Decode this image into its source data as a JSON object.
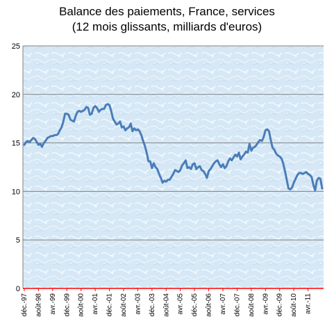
{
  "chart_data": {
    "type": "line",
    "title_lines": [
      "Balance des paiements, France, services",
      "(12 mois glissants, milliards d'euros)"
    ],
    "xlabel": "",
    "ylabel": "",
    "ylim": [
      0,
      25
    ],
    "yticks": [
      0,
      5,
      10,
      15,
      20,
      25
    ],
    "grid": true,
    "legend": "none",
    "colors": {
      "line": "#4a7db8",
      "grid": "#808080",
      "axis": "#ff0000",
      "plot_bg": "#dcebf7"
    },
    "x_tick_labels": [
      "déc.-97",
      "août-98",
      "avr.-99",
      "déc.-99",
      "août-00",
      "avr.-01",
      "déc.-01",
      "août-02",
      "avr.-03",
      "déc.-03",
      "août-04",
      "avr.-05",
      "déc.-05",
      "août-06",
      "avr.-07",
      "déc.-07",
      "août-08",
      "avr.-09",
      "déc.-09",
      "août-10",
      "avr.-11"
    ],
    "x_start": "déc.-97",
    "x_end": "avr.-11",
    "series": [
      {
        "frequency": "monthly",
        "values": [
          14.8,
          15.1,
          15.2,
          15.1,
          15.3,
          15.5,
          15.4,
          15.1,
          14.8,
          14.9,
          14.6,
          15.0,
          15.2,
          15.5,
          15.6,
          15.7,
          15.7,
          15.8,
          15.8,
          15.9,
          16.3,
          16.6,
          17.2,
          18.0,
          18.0,
          17.9,
          17.4,
          17.3,
          17.2,
          17.8,
          18.2,
          18.3,
          18.2,
          18.3,
          18.4,
          18.7,
          18.6,
          17.9,
          18.0,
          18.6,
          18.8,
          18.6,
          18.2,
          18.4,
          18.5,
          18.5,
          18.9,
          19.0,
          18.9,
          18.3,
          17.5,
          17.2,
          16.9,
          17.0,
          17.2,
          16.6,
          16.7,
          16.3,
          16.5,
          16.6,
          17.0,
          16.2,
          16.5,
          16.3,
          16.4,
          16.2,
          15.8,
          15.2,
          14.7,
          14.0,
          13.1,
          13.1,
          12.4,
          12.9,
          12.5,
          12.3,
          11.8,
          11.4,
          10.9,
          11.1,
          11.0,
          11.2,
          11.2,
          11.5,
          11.8,
          12.2,
          12.1,
          12.0,
          12.2,
          12.7,
          12.9,
          13.2,
          12.4,
          12.5,
          12.3,
          12.8,
          12.9,
          12.3,
          12.5,
          12.6,
          12.2,
          12.1,
          11.8,
          11.4,
          12.1,
          12.3,
          12.6,
          12.9,
          13.1,
          13.2,
          12.8,
          12.5,
          12.8,
          12.4,
          12.6,
          13.1,
          13.4,
          13.2,
          13.5,
          13.8,
          13.6,
          14.0,
          13.3,
          13.6,
          13.8,
          14.1,
          14.0,
          14.9,
          14.2,
          14.5,
          14.6,
          14.8,
          15.1,
          15.3,
          15.2,
          15.6,
          16.3,
          16.4,
          16.2,
          15.3,
          14.5,
          14.3,
          13.9,
          13.7,
          13.6,
          13.4,
          12.9,
          12.1,
          11.2,
          10.3,
          10.2,
          10.4,
          10.9,
          11.3,
          11.7,
          11.9,
          11.9,
          11.8,
          11.9,
          12.0,
          11.8,
          11.7,
          11.5,
          10.7,
          10.1,
          11.1,
          11.4,
          11.3,
          10.3
        ]
      }
    ]
  }
}
